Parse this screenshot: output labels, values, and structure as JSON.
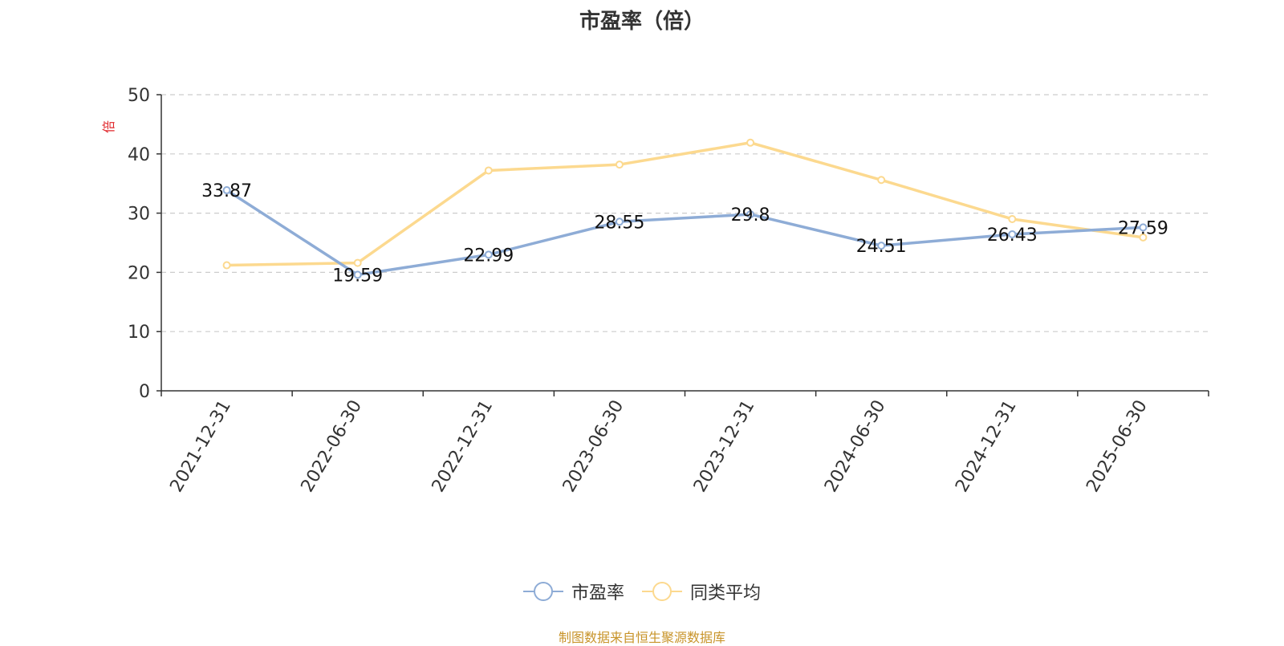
{
  "chart_data": {
    "type": "line",
    "title": "市盈率（倍）",
    "ylabel": "倍",
    "ylim": [
      0,
      50
    ],
    "yticks": [
      0,
      10,
      20,
      30,
      40,
      50
    ],
    "categories": [
      "2021-12-31",
      "2022-06-30",
      "2022-12-31",
      "2023-06-30",
      "2023-12-31",
      "2024-06-30",
      "2024-12-31",
      "2025-06-30"
    ],
    "series": [
      {
        "name": "市盈率",
        "color": "#8eacd6",
        "values": [
          33.87,
          19.59,
          22.99,
          28.55,
          29.8,
          24.51,
          26.43,
          27.59
        ],
        "labels": [
          "33.87",
          "19.59",
          "22.99",
          "28.55",
          "29.8",
          "24.51",
          "26.43",
          "27.59"
        ]
      },
      {
        "name": "同类平均",
        "color": "#fcd98f",
        "values": [
          21.2,
          21.6,
          37.2,
          38.2,
          41.9,
          35.6,
          29.0,
          25.9
        ]
      }
    ],
    "grid": "horizontal-dashed",
    "legend": "bottom"
  },
  "source_note": "制图数据来自恒生聚源数据库",
  "colors": {
    "axis": "#333333",
    "grid": "#cccccc",
    "ylabel": "#e0262a",
    "source": "#c8942a"
  }
}
